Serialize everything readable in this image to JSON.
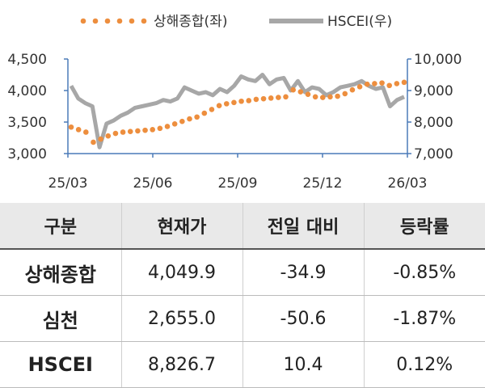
{
  "chart_data": {
    "type": "line",
    "legend": [
      {
        "name": "상해종합(좌)",
        "color": "#ED8E3E",
        "style": "dotted"
      },
      {
        "name": "HSCEI(우)",
        "color": "#A7A7A7",
        "style": "solid"
      }
    ],
    "x_ticks": [
      "25/03",
      "25/06",
      "25/09",
      "25/12",
      "26/03"
    ],
    "y_left": {
      "ticks": [
        "3,000",
        "3,500",
        "4,000",
        "4,500"
      ],
      "range": [
        3000,
        4500
      ]
    },
    "y_right": {
      "ticks": [
        "7,000",
        "8,000",
        "9,000",
        "10,000"
      ],
      "range": [
        7000,
        10000
      ]
    },
    "series": [
      {
        "name": "상해종합(좌)",
        "axis": "left",
        "x": [
          "25/03",
          "25/03",
          "25/04",
          "25/04",
          "25/04",
          "25/04",
          "25/05",
          "25/05",
          "25/05",
          "25/05",
          "25/06",
          "25/06",
          "25/06",
          "25/06",
          "25/07",
          "25/07",
          "25/07",
          "25/07",
          "25/08",
          "25/08",
          "25/08",
          "25/08",
          "25/09",
          "25/09",
          "25/09",
          "25/09",
          "25/10",
          "25/10",
          "25/10",
          "25/10",
          "25/11",
          "25/11",
          "25/11",
          "25/11",
          "25/12",
          "25/12",
          "25/12",
          "25/12",
          "26/01",
          "26/01",
          "26/01",
          "26/01",
          "26/02",
          "26/02",
          "26/02",
          "26/03"
        ],
        "values": [
          3420,
          3380,
          3340,
          3180,
          3230,
          3280,
          3320,
          3340,
          3350,
          3360,
          3370,
          3380,
          3400,
          3430,
          3470,
          3510,
          3550,
          3580,
          3640,
          3700,
          3760,
          3790,
          3810,
          3830,
          3840,
          3860,
          3870,
          3880,
          3890,
          3900,
          4010,
          3980,
          3940,
          3900,
          3890,
          3900,
          3910,
          3950,
          4010,
          4060,
          4100,
          4110,
          4120,
          4080,
          4110,
          4130
        ]
      },
      {
        "name": "HSCEI(우)",
        "axis": "right",
        "x": [
          "25/03",
          "25/03",
          "25/03",
          "25/03",
          "25/04",
          "25/04",
          "25/04",
          "25/04",
          "25/05",
          "25/05",
          "25/05",
          "25/05",
          "25/06",
          "25/06",
          "25/06",
          "25/06",
          "25/07",
          "25/07",
          "25/07",
          "25/07",
          "25/08",
          "25/08",
          "25/08",
          "25/08",
          "25/09",
          "25/09",
          "25/09",
          "25/09",
          "25/10",
          "25/10",
          "25/10",
          "25/10",
          "25/11",
          "25/11",
          "25/11",
          "25/11",
          "25/12",
          "25/12",
          "25/12",
          "25/12",
          "26/01",
          "26/01",
          "26/01",
          "26/01",
          "26/02",
          "26/02",
          "26/02",
          "26/03"
        ],
        "values": [
          9150,
          8750,
          8600,
          8500,
          7200,
          7950,
          8050,
          8200,
          8300,
          8450,
          8500,
          8550,
          8600,
          8700,
          8650,
          8750,
          9100,
          9000,
          8900,
          8950,
          8850,
          9050,
          8950,
          9150,
          9450,
          9350,
          9300,
          9500,
          9200,
          9350,
          9400,
          9000,
          9300,
          8950,
          9100,
          9050,
          8850,
          8950,
          9100,
          9150,
          9200,
          9300,
          9150,
          9050,
          9100,
          8500,
          8700,
          8800
        ]
      }
    ]
  },
  "table": {
    "headers": [
      "구분",
      "현재가",
      "전일 대비",
      "등락률"
    ],
    "rows": [
      [
        "상해종합",
        "4,049.9",
        "-34.9",
        "-0.85%"
      ],
      [
        "심천",
        "2,655.0",
        "-50.6",
        "-1.87%"
      ],
      [
        "HSCEI",
        "8,826.7",
        "10.4",
        "0.12%"
      ]
    ]
  }
}
